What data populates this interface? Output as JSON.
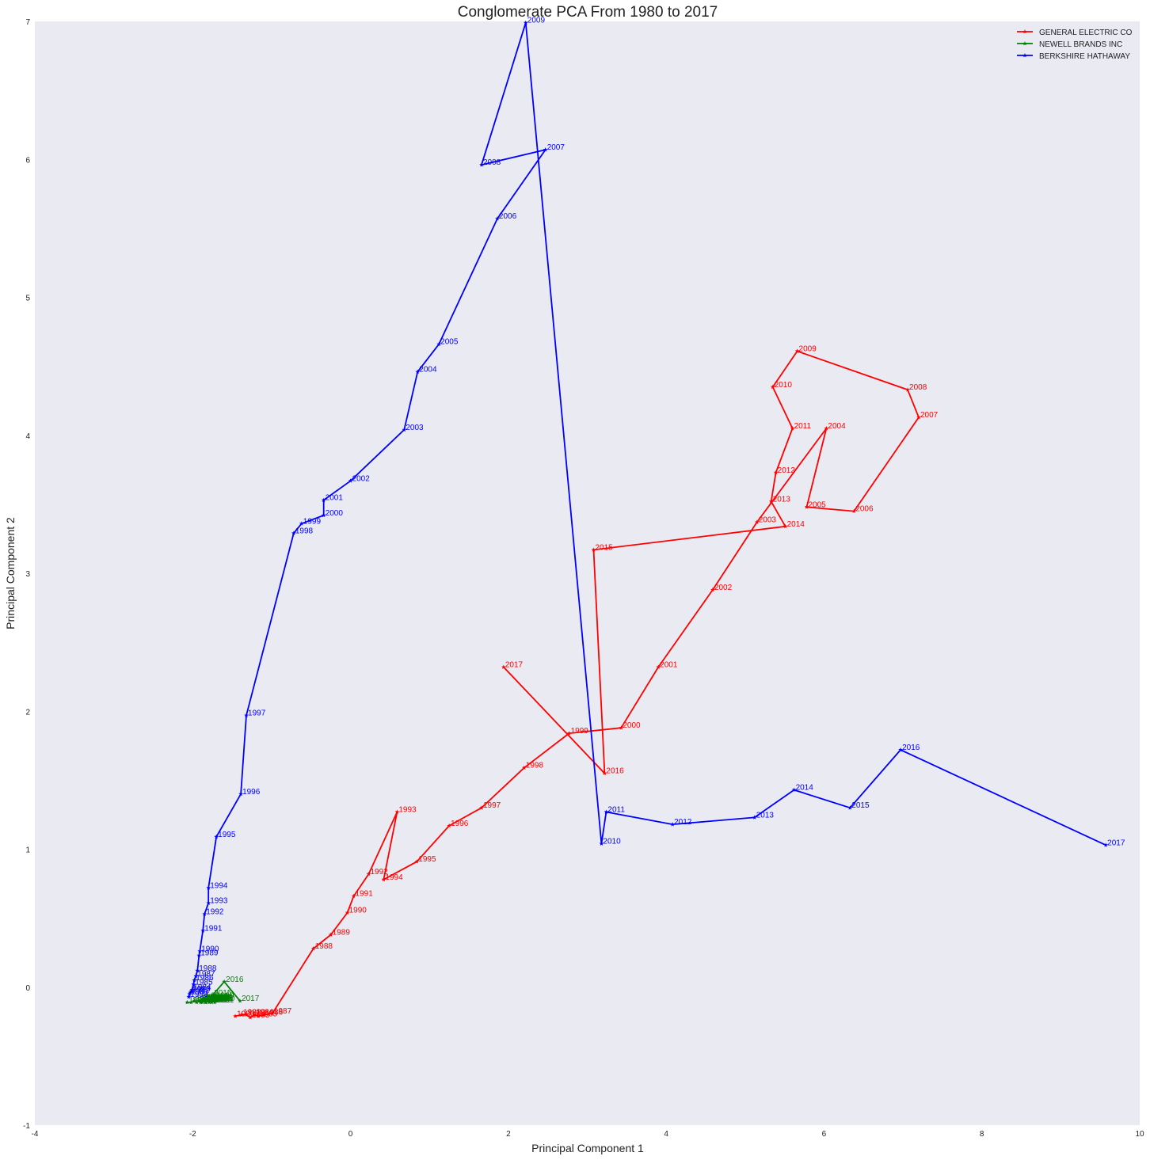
{
  "chart_data": {
    "type": "line",
    "title": "Conglomerate PCA From 1980 to 2017",
    "xlabel": "Principal Component 1",
    "ylabel": "Principal Component 2",
    "xlim": [
      -4,
      10
    ],
    "ylim": [
      -1,
      7
    ],
    "xticks": [
      -4,
      -2,
      0,
      2,
      4,
      6,
      8,
      10
    ],
    "yticks": [
      -1,
      0,
      1,
      2,
      3,
      4,
      5,
      6,
      7
    ],
    "grid": false,
    "background": "#eaeaf2",
    "legend": "top-right",
    "marker": "star",
    "series": [
      {
        "name": "GENERAL ELECTRIC CO",
        "color": "#ff0000",
        "points": [
          {
            "year": "1980",
            "x": -1.46,
            "y": -0.21
          },
          {
            "year": "1981",
            "x": -1.38,
            "y": -0.2
          },
          {
            "year": "1982",
            "x": -1.32,
            "y": -0.2
          },
          {
            "year": "1983",
            "x": -1.27,
            "y": -0.22
          },
          {
            "year": "1984",
            "x": -1.22,
            "y": -0.2
          },
          {
            "year": "1985",
            "x": -1.17,
            "y": -0.21
          },
          {
            "year": "1986",
            "x": -1.1,
            "y": -0.2
          },
          {
            "year": "1987",
            "x": -0.99,
            "y": -0.19
          },
          {
            "year": "1988",
            "x": -0.47,
            "y": 0.28
          },
          {
            "year": "1989",
            "x": -0.25,
            "y": 0.38
          },
          {
            "year": "1990",
            "x": -0.04,
            "y": 0.54
          },
          {
            "year": "1991",
            "x": 0.04,
            "y": 0.66
          },
          {
            "year": "1992",
            "x": 0.23,
            "y": 0.82
          },
          {
            "year": "1993",
            "x": 0.59,
            "y": 1.27
          },
          {
            "year": "1994",
            "x": 0.42,
            "y": 0.78
          },
          {
            "year": "1995",
            "x": 0.84,
            "y": 0.91
          },
          {
            "year": "1996",
            "x": 1.25,
            "y": 1.17
          },
          {
            "year": "1997",
            "x": 1.66,
            "y": 1.3
          },
          {
            "year": "1998",
            "x": 2.2,
            "y": 1.59
          },
          {
            "year": "1999",
            "x": 2.77,
            "y": 1.84
          },
          {
            "year": "2000",
            "x": 3.43,
            "y": 1.88
          },
          {
            "year": "2001",
            "x": 3.9,
            "y": 2.32
          },
          {
            "year": "2002",
            "x": 4.59,
            "y": 2.88
          },
          {
            "year": "2003",
            "x": 5.15,
            "y": 3.37
          },
          {
            "year": "2004",
            "x": 6.03,
            "y": 4.05
          },
          {
            "year": "2005",
            "x": 5.78,
            "y": 3.48
          },
          {
            "year": "2006",
            "x": 6.38,
            "y": 3.45
          },
          {
            "year": "2007",
            "x": 7.2,
            "y": 4.13
          },
          {
            "year": "2008",
            "x": 7.06,
            "y": 4.33
          },
          {
            "year": "2009",
            "x": 5.66,
            "y": 4.61
          },
          {
            "year": "2010",
            "x": 5.35,
            "y": 4.35
          },
          {
            "year": "2011",
            "x": 5.6,
            "y": 4.05
          },
          {
            "year": "2012",
            "x": 5.39,
            "y": 3.73
          },
          {
            "year": "2013",
            "x": 5.33,
            "y": 3.52
          },
          {
            "year": "2014",
            "x": 5.51,
            "y": 3.34
          },
          {
            "year": "2015",
            "x": 3.08,
            "y": 3.17
          },
          {
            "year": "2016",
            "x": 3.22,
            "y": 1.55
          },
          {
            "year": "2017",
            "x": 1.94,
            "y": 2.32
          }
        ]
      },
      {
        "name": "NEWELL BRANDS INC",
        "color": "#008000",
        "points": [
          {
            "year": "1980",
            "x": -2.07,
            "y": -0.11
          },
          {
            "year": "1981",
            "x": -2.02,
            "y": -0.11
          },
          {
            "year": "1982",
            "x": -1.98,
            "y": -0.1
          },
          {
            "year": "1983",
            "x": -1.95,
            "y": -0.11
          },
          {
            "year": "1984",
            "x": -1.92,
            "y": -0.1
          },
          {
            "year": "1985",
            "x": -1.9,
            "y": -0.11
          },
          {
            "year": "1986",
            "x": -1.88,
            "y": -0.09
          },
          {
            "year": "1987",
            "x": -1.86,
            "y": -0.1
          },
          {
            "year": "1988",
            "x": -1.84,
            "y": -0.09
          },
          {
            "year": "1989",
            "x": -1.83,
            "y": -0.11
          },
          {
            "year": "1990",
            "x": -1.81,
            "y": -0.1
          },
          {
            "year": "1991",
            "x": -1.8,
            "y": -0.09
          },
          {
            "year": "1992",
            "x": -1.79,
            "y": -0.11
          },
          {
            "year": "1993",
            "x": -1.78,
            "y": -0.1
          },
          {
            "year": "1994",
            "x": -1.77,
            "y": -0.09
          },
          {
            "year": "1995",
            "x": -1.76,
            "y": -0.11
          },
          {
            "year": "1996",
            "x": -1.75,
            "y": -0.1
          },
          {
            "year": "1997",
            "x": -1.74,
            "y": -0.09
          },
          {
            "year": "1998",
            "x": -1.73,
            "y": -0.1
          },
          {
            "year": "1999",
            "x": -1.72,
            "y": -0.08
          },
          {
            "year": "2000",
            "x": -1.71,
            "y": -0.1
          },
          {
            "year": "2001",
            "x": -1.72,
            "y": -0.11
          },
          {
            "year": "2002",
            "x": -1.74,
            "y": -0.1
          },
          {
            "year": "2003",
            "x": -1.76,
            "y": -0.09
          },
          {
            "year": "2004",
            "x": -1.78,
            "y": -0.1
          },
          {
            "year": "2005",
            "x": -1.8,
            "y": -0.09
          },
          {
            "year": "2006",
            "x": -1.82,
            "y": -0.1
          },
          {
            "year": "2007",
            "x": -1.84,
            "y": -0.11
          },
          {
            "year": "2008",
            "x": -1.86,
            "y": -0.1
          },
          {
            "year": "2009",
            "x": -1.88,
            "y": -0.09
          },
          {
            "year": "2010",
            "x": -1.9,
            "y": -0.1
          },
          {
            "year": "2011",
            "x": -1.88,
            "y": -0.11
          },
          {
            "year": "2012",
            "x": -1.85,
            "y": -0.1
          },
          {
            "year": "2013",
            "x": -1.82,
            "y": -0.09
          },
          {
            "year": "2014",
            "x": -1.79,
            "y": -0.08
          },
          {
            "year": "2015",
            "x": -1.75,
            "y": -0.06
          },
          {
            "year": "2016",
            "x": -1.6,
            "y": 0.04
          },
          {
            "year": "2017",
            "x": -1.4,
            "y": -0.1
          }
        ]
      },
      {
        "name": "BERKSHIRE HATHAWAY",
        "color": "#0000ff",
        "points": [
          {
            "year": "1980",
            "x": -2.05,
            "y": -0.07
          },
          {
            "year": "1981",
            "x": -2.04,
            "y": -0.05
          },
          {
            "year": "1982",
            "x": -2.03,
            "y": -0.04
          },
          {
            "year": "1983",
            "x": -2.02,
            "y": -0.03
          },
          {
            "year": "1984",
            "x": -2.01,
            "y": -0.02
          },
          {
            "year": "1985",
            "x": -1.99,
            "y": 0.02
          },
          {
            "year": "1986",
            "x": -1.98,
            "y": 0.05
          },
          {
            "year": "1987",
            "x": -1.96,
            "y": 0.08
          },
          {
            "year": "1988",
            "x": -1.94,
            "y": 0.12
          },
          {
            "year": "1989",
            "x": -1.92,
            "y": 0.23
          },
          {
            "year": "1990",
            "x": -1.91,
            "y": 0.26
          },
          {
            "year": "1991",
            "x": -1.87,
            "y": 0.41
          },
          {
            "year": "1992",
            "x": -1.85,
            "y": 0.53
          },
          {
            "year": "1993",
            "x": -1.8,
            "y": 0.61
          },
          {
            "year": "1994",
            "x": -1.8,
            "y": 0.72
          },
          {
            "year": "1995",
            "x": -1.7,
            "y": 1.09
          },
          {
            "year": "1996",
            "x": -1.39,
            "y": 1.4
          },
          {
            "year": "1997",
            "x": -1.32,
            "y": 1.97
          },
          {
            "year": "1998",
            "x": -0.72,
            "y": 3.29
          },
          {
            "year": "1999",
            "x": -0.62,
            "y": 3.36
          },
          {
            "year": "2000",
            "x": -0.34,
            "y": 3.42
          },
          {
            "year": "2001",
            "x": -0.34,
            "y": 3.53
          },
          {
            "year": "2002",
            "x": 0.0,
            "y": 3.67
          },
          {
            "year": "2003",
            "x": 0.68,
            "y": 4.04
          },
          {
            "year": "2004",
            "x": 0.85,
            "y": 4.46
          },
          {
            "year": "2005",
            "x": 1.12,
            "y": 4.66
          },
          {
            "year": "2006",
            "x": 1.86,
            "y": 5.57
          },
          {
            "year": "2007",
            "x": 2.47,
            "y": 6.07
          },
          {
            "year": "2008",
            "x": 1.66,
            "y": 5.96
          },
          {
            "year": "2009",
            "x": 2.22,
            "y": 6.99
          },
          {
            "year": "2010",
            "x": 3.18,
            "y": 1.04
          },
          {
            "year": "2011",
            "x": 3.24,
            "y": 1.27
          },
          {
            "year": "2012",
            "x": 4.08,
            "y": 1.18
          },
          {
            "year": "2013",
            "x": 5.12,
            "y": 1.23
          },
          {
            "year": "2014",
            "x": 5.62,
            "y": 1.43
          },
          {
            "year": "2015",
            "x": 6.33,
            "y": 1.3
          },
          {
            "year": "2016",
            "x": 6.97,
            "y": 1.72
          },
          {
            "year": "2017",
            "x": 9.57,
            "y": 1.03
          }
        ]
      }
    ]
  }
}
